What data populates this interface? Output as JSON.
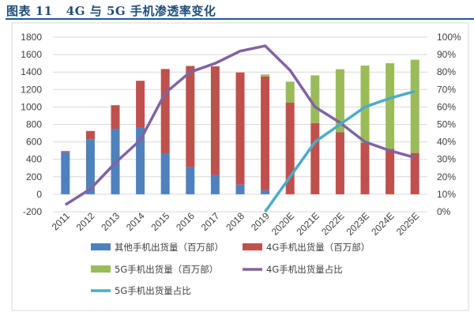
{
  "title": "图表 11   4G 与 5G 手机渗透率变化",
  "colors": {
    "other": "#4f81bd",
    "g4": "#c0504d",
    "g5": "#9bbb59",
    "g4share": "#8064a2",
    "g5share": "#4bacc6"
  },
  "chart_data": {
    "type": "bar",
    "stacked": true,
    "categories": [
      "2011",
      "2012",
      "2013",
      "2014",
      "2015",
      "2016",
      "2017",
      "2018",
      "2019",
      "2020E",
      "2021E",
      "2022E",
      "2023E",
      "2024E",
      "2025E"
    ],
    "series": [
      {
        "name": "其他手机出货量（百万部）",
        "type": "bar",
        "axis": "left",
        "values": [
          480,
          630,
          750,
          760,
          470,
          315,
          220,
          110,
          48,
          0,
          0,
          0,
          0,
          0,
          0
        ]
      },
      {
        "name": "4G手机出货量（百万部）",
        "type": "bar",
        "axis": "left",
        "values": [
          15,
          95,
          270,
          540,
          965,
          1155,
          1245,
          1285,
          1302,
          1049,
          816,
          712,
          588,
          522,
          473
        ]
      },
      {
        "name": "5G手机出货量（百万部）",
        "type": "bar",
        "axis": "left",
        "values": [
          0,
          0,
          0,
          0,
          0,
          0,
          0,
          0,
          22,
          241,
          546,
          720,
          886,
          979,
          1068
        ]
      },
      {
        "name": "4G手机出货量占比",
        "type": "line",
        "axis": "right",
        "values": [
          0.04,
          0.13,
          0.28,
          0.41,
          0.68,
          0.8,
          0.85,
          0.92,
          0.95,
          0.81,
          0.6,
          0.51,
          0.4,
          0.35,
          0.31
        ]
      },
      {
        "name": "5G手机出货量占比",
        "type": "line",
        "axis": "right",
        "values": [
          null,
          null,
          null,
          null,
          null,
          null,
          null,
          null,
          0.0,
          0.2,
          0.4,
          0.5,
          0.6,
          0.65,
          0.69
        ]
      }
    ],
    "ylim": [
      -200,
      1800
    ],
    "yticks": [
      "-200",
      "0",
      "200",
      "400",
      "600",
      "800",
      "1000",
      "1200",
      "1400",
      "1600",
      "1800"
    ],
    "y2lim": [
      0,
      1
    ],
    "y2ticks": [
      "0%",
      "10%",
      "20%",
      "30%",
      "40%",
      "50%",
      "60%",
      "70%",
      "80%",
      "90%",
      "100%"
    ],
    "grid": true,
    "legend": "bottom"
  }
}
